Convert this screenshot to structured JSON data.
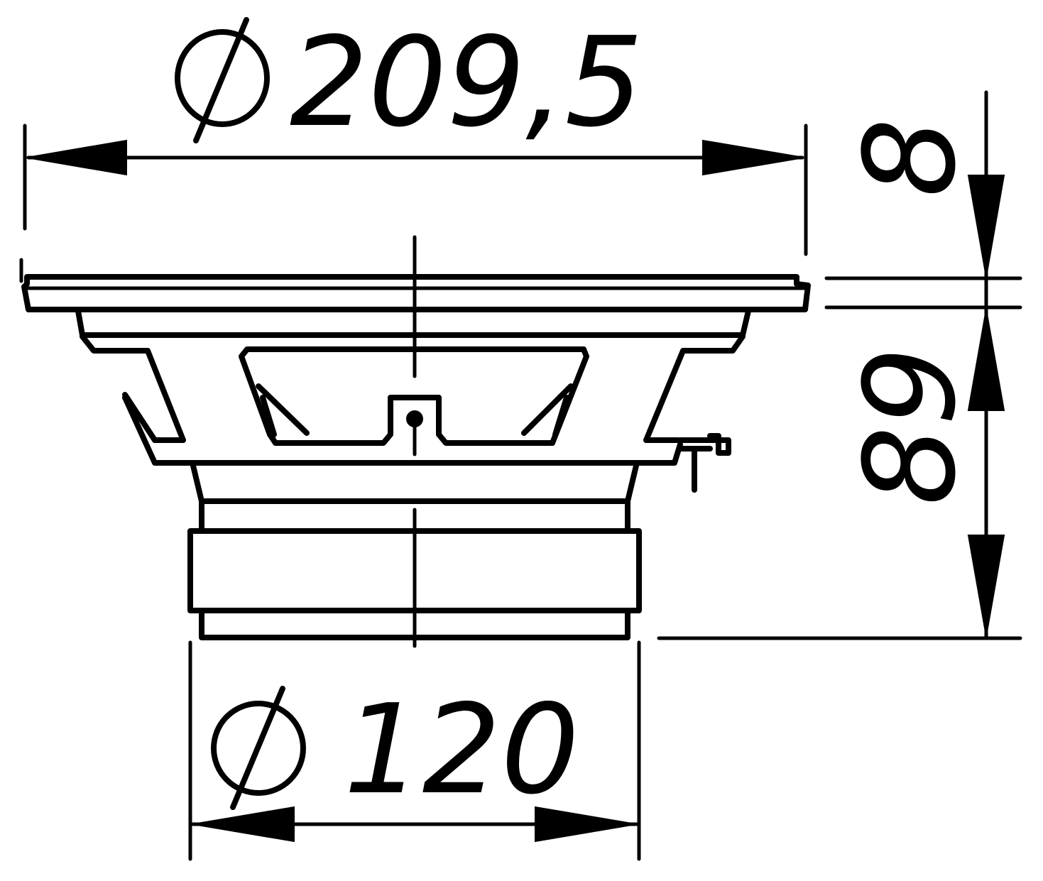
{
  "dimensions": {
    "outer_diameter": {
      "symbol": "∅",
      "value": "209,5"
    },
    "magnet_diameter": {
      "symbol": "∅",
      "value": "120"
    },
    "flange_thickness": {
      "value": "8"
    },
    "mounting_depth": {
      "value": "89"
    }
  },
  "colors": {
    "line": "#000000",
    "background": "#ffffff"
  }
}
